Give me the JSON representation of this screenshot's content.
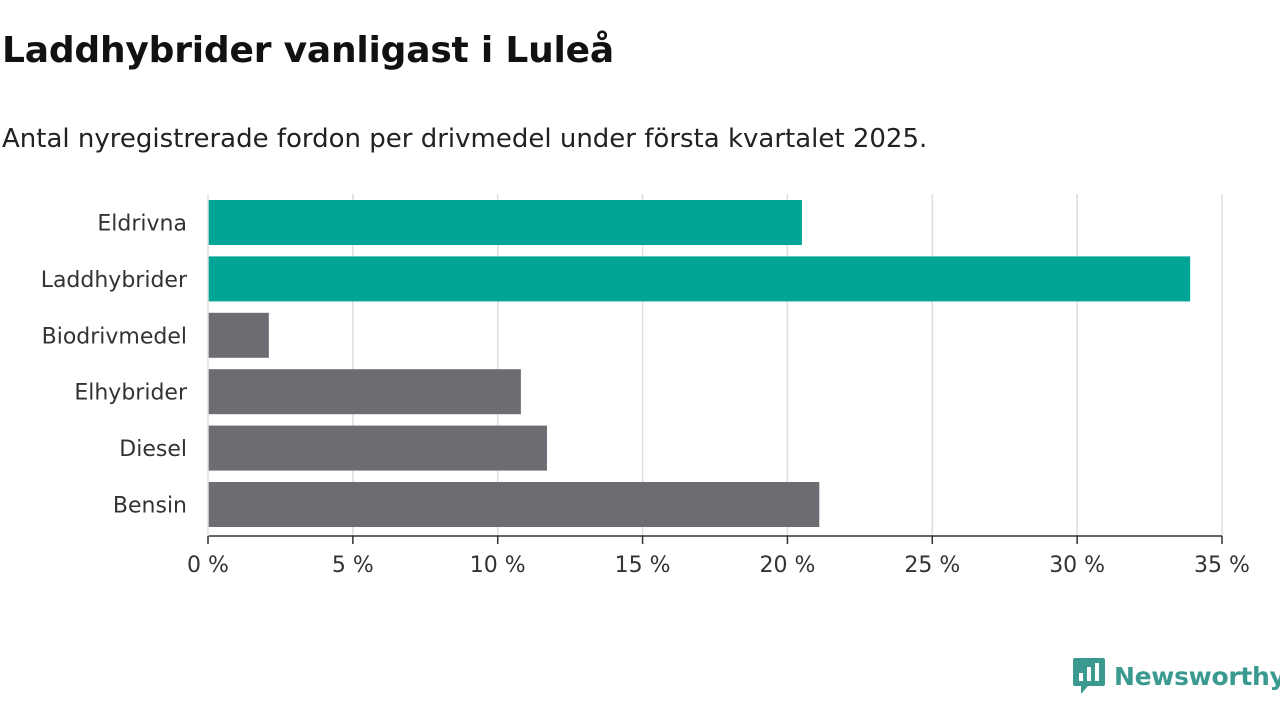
{
  "chart_data": {
    "type": "bar",
    "orientation": "horizontal",
    "title": "Laddhybrider vanligast i Luleå",
    "subtitle": "Antal nyregistrerade fordon per drivmedel under första kvartalet 2025.",
    "categories": [
      "Eldrivna",
      "Laddhybrider",
      "Biodrivmedel",
      "Elhybrider",
      "Diesel",
      "Bensin"
    ],
    "values": [
      20.5,
      33.9,
      2.1,
      10.8,
      11.7,
      21.1
    ],
    "bar_colors": [
      "#00a596",
      "#00a596",
      "#6d6c72",
      "#6d6c72",
      "#6d6c72",
      "#6d6c72"
    ],
    "xlim": [
      0,
      35
    ],
    "xticks": [
      0,
      5,
      10,
      15,
      20,
      25,
      30,
      35
    ],
    "xtick_labels": [
      "0 %",
      "5 %",
      "10 %",
      "15 %",
      "20 %",
      "25 %",
      "30 %",
      "35 %"
    ],
    "grid": "vertical",
    "xlabel": "",
    "ylabel": ""
  },
  "branding": {
    "logo_text": "Newsworthy",
    "logo_icon": "newsworthy-chart-bubble-icon",
    "logo_color": "#3a9a8f"
  }
}
